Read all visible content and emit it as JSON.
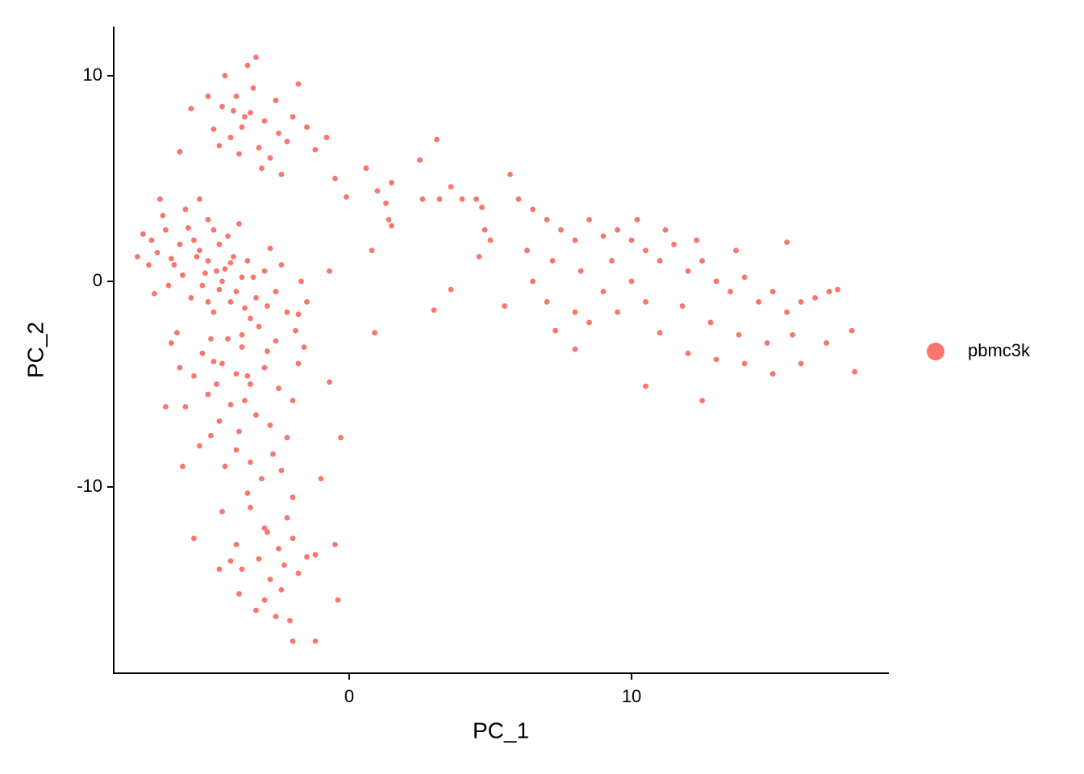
{
  "chart_data": {
    "type": "scatter",
    "x_label": "PC_1",
    "y_label": "PC_2",
    "xlim": [
      -8.34,
      19.11
    ],
    "ylim": [
      -19.06,
      12.39
    ],
    "xticks": [
      0,
      10
    ],
    "yticks": [
      -10,
      0,
      10
    ],
    "grid": false,
    "legend": "right",
    "x": [
      -3.8,
      -3.5,
      -4.2,
      -3.0,
      -4.5,
      -3.2,
      -2.5,
      -4.0,
      -3.6,
      -3.3,
      -5.0,
      -2.0,
      -1.8,
      -2.8,
      -4.8,
      -5.6,
      -3.9,
      -2.2,
      -1.5,
      -3.4,
      -4.4,
      -2.6,
      -6.0,
      -1.2,
      -0.8,
      -3.1,
      -4.6,
      -2.4,
      -3.7,
      -4.1,
      -5.0,
      -5.3,
      -4.7,
      -4.5,
      -4.0,
      -5.5,
      -6.0,
      -6.5,
      -4.2,
      -3.5,
      -3.8,
      -5.2,
      -6.2,
      -6.8,
      -7.0,
      -7.1,
      -6.6,
      -5.8,
      -5.0,
      -4.3,
      -3.6,
      -3.0,
      -2.6,
      -2.2,
      -3.2,
      -4.8,
      -5.6,
      -6.4,
      -5.9,
      -4.6,
      -4.1,
      -3.3,
      -2.9,
      -2.4,
      -1.7,
      -1.8,
      -3.9,
      -5.3,
      -6.9,
      -6.1,
      -4.9,
      -3.8,
      -2.6,
      -1.9,
      -7.3,
      -6.7,
      -5.7,
      -4.4,
      -5.1,
      -3.7,
      -4.6,
      -5.4,
      -4.8,
      -3.4,
      -2.8,
      -6.3,
      -5.0,
      -4.2,
      -7.5,
      -1.5,
      -4.5,
      -4.0,
      -3.5,
      -5.0,
      -4.2,
      -3.0,
      -2.5,
      -5.2,
      -3.8,
      -4.6,
      -3.3,
      -2.8,
      -4.9,
      -4.0,
      -3.5,
      -2.7,
      -5.3,
      -4.4,
      -3.1,
      -2.2,
      -5.8,
      -6.0,
      -2.0,
      -1.8,
      -3.7,
      -4.7,
      -2.9,
      -5.5,
      -3.9,
      -1.6,
      -6.3,
      -4.3,
      -5.9,
      -2.4,
      -1.0,
      -0.3,
      -0.7,
      -6.5,
      -3.6,
      -4.8,
      -3.0,
      -3.5,
      -2.5,
      -3.2,
      -2.0,
      -4.0,
      -3.8,
      -2.8,
      -2.2,
      -3.6,
      -3.0,
      -2.6,
      -2.4,
      -1.8,
      -4.2,
      -4.5,
      -2.0,
      -1.5,
      -1.2,
      -3.3,
      -2.0,
      -1.2,
      -0.4,
      -0.5,
      -2.1,
      -5.5,
      -4.6,
      -3.9,
      -2.9,
      -2.3,
      -0.5,
      -0.1,
      0.6,
      1.0,
      1.5,
      1.3,
      1.4,
      1.5,
      2.5,
      2.6,
      3.1,
      3.2,
      3.6,
      4.0,
      4.5,
      4.7,
      5.0,
      4.8,
      0.8,
      0.9,
      3.0,
      3.6,
      5.5,
      4.6,
      -0.7,
      6.0,
      5.7,
      6.5,
      7.0,
      7.5,
      8.0,
      8.5,
      9.0,
      9.5,
      10.0,
      10.5,
      11.0,
      11.5,
      12.0,
      12.5,
      13.0,
      13.5,
      14.0,
      14.5,
      15.0,
      15.5,
      16.0,
      16.5,
      17.0,
      17.3,
      17.8,
      17.9,
      16.9,
      16.0,
      15.0,
      14.0,
      13.0,
      12.0,
      11.0,
      10.5,
      10.0,
      9.5,
      9.0,
      8.5,
      8.0,
      7.0,
      6.5,
      6.3,
      7.2,
      8.2,
      9.3,
      11.8,
      12.8,
      13.8,
      14.8,
      15.7,
      12.5,
      10.5,
      8.0,
      7.3,
      10.2,
      11.2,
      12.3,
      13.7,
      15.5
    ],
    "series": [
      {
        "name": "pbmc3k",
        "color": "#F8766D",
        "values": [
          7.5,
          8.2,
          7.0,
          7.8,
          8.5,
          6.5,
          7.2,
          9.0,
          10.5,
          10.9,
          9.0,
          8.0,
          9.6,
          6.0,
          7.4,
          8.4,
          6.2,
          6.8,
          7.5,
          9.4,
          10.0,
          8.8,
          6.3,
          6.4,
          7.0,
          5.5,
          6.6,
          5.2,
          8.0,
          8.3,
          1.0,
          1.5,
          0.5,
          0.0,
          -0.5,
          2.0,
          1.8,
          2.5,
          -1.0,
          -1.8,
          0.2,
          -0.2,
          0.8,
          1.4,
          2.0,
          0.8,
          3.2,
          3.5,
          3.0,
          2.2,
          1.0,
          0.5,
          -0.5,
          -1.5,
          -2.2,
          -1.5,
          -0.8,
          -0.2,
          0.3,
          1.8,
          1.2,
          -0.8,
          -1.2,
          0.8,
          0.0,
          -1.6,
          2.8,
          4.0,
          -0.6,
          -2.5,
          -2.8,
          -2.6,
          -2.9,
          -2.4,
          2.3,
          4.0,
          2.6,
          0.6,
          0.4,
          -1.3,
          -0.4,
          1.2,
          2.5,
          0.2,
          1.6,
          1.1,
          -1.0,
          0.9,
          1.2,
          -1.0,
          -4.0,
          -4.5,
          -5.0,
          -5.5,
          -6.0,
          -4.2,
          -5.2,
          -3.5,
          -3.2,
          -6.8,
          -6.5,
          -7.0,
          -7.5,
          -8.2,
          -8.8,
          -8.4,
          -8.0,
          -9.0,
          -9.6,
          -7.6,
          -6.1,
          -4.2,
          -5.8,
          -4.0,
          -5.8,
          -5.0,
          -3.4,
          -4.6,
          -7.3,
          -3.2,
          -3.0,
          -2.8,
          -9.0,
          -9.2,
          -9.6,
          -7.6,
          -4.9,
          -6.1,
          -4.6,
          -3.9,
          -12.0,
          -11.0,
          -13.0,
          -13.5,
          -12.5,
          -12.8,
          -14.0,
          -14.5,
          -11.5,
          -10.3,
          -15.5,
          -16.3,
          -15.0,
          -14.2,
          -13.6,
          -11.2,
          -10.5,
          -13.4,
          -13.3,
          -16.0,
          -17.5,
          -17.5,
          -15.5,
          -12.8,
          -16.5,
          -12.5,
          -14.0,
          -15.2,
          -12.2,
          -13.8,
          5.0,
          4.1,
          5.5,
          4.4,
          4.8,
          3.8,
          3.0,
          2.7,
          5.9,
          4.0,
          6.9,
          4.0,
          4.6,
          4.0,
          4.0,
          3.6,
          2.0,
          2.5,
          1.5,
          -2.5,
          -1.4,
          -0.4,
          -1.2,
          1.2,
          0.5,
          4.0,
          5.2,
          3.5,
          3.0,
          2.5,
          2.0,
          3.0,
          2.2,
          2.5,
          2.0,
          1.5,
          1.0,
          1.8,
          0.5,
          1.0,
          0.0,
          -0.5,
          0.2,
          -1.0,
          -0.5,
          -1.5,
          -1.0,
          -0.8,
          -0.5,
          -0.4,
          -2.4,
          -4.4,
          -3.0,
          -4.0,
          -4.5,
          -4.0,
          -3.8,
          -3.5,
          -2.5,
          -1.0,
          0.0,
          -1.5,
          -0.5,
          -2.0,
          -1.5,
          -1.0,
          0.0,
          1.5,
          1.0,
          0.5,
          1.0,
          -1.2,
          -2.0,
          -2.6,
          -3.0,
          -2.6,
          -5.8,
          -5.1,
          -3.3,
          -2.4,
          3.0,
          2.5,
          2.0,
          1.5,
          1.9
        ]
      }
    ]
  }
}
